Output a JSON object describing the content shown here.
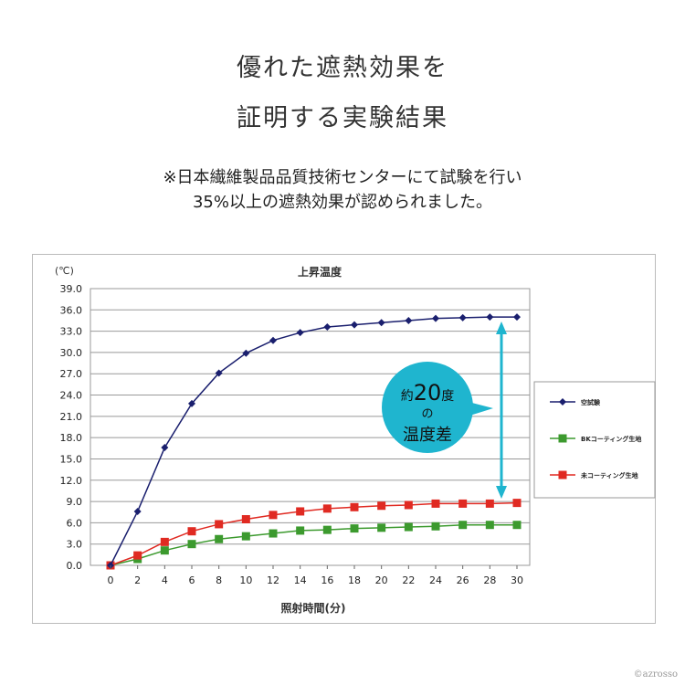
{
  "heading": {
    "line1": "優れた遮熱効果を",
    "line2": "証明する実験結果"
  },
  "description": {
    "line1": "※日本繊維製品品質技術センターにて試験を行い",
    "line2": "35%以上の遮熱効果が認められました。"
  },
  "callout": {
    "prefix": "約",
    "number": "20",
    "suffix": "度",
    "middle": "の",
    "bottom": "温度差",
    "color": "#1fb5cf"
  },
  "watermark": "©azrosso",
  "chart_data": {
    "type": "line",
    "title": "上昇温度",
    "ylabel": "(℃)",
    "xlabel": "照射時間(分)",
    "x": [
      0,
      2,
      4,
      6,
      8,
      10,
      12,
      14,
      16,
      18,
      20,
      22,
      24,
      26,
      28,
      30
    ],
    "ylim": [
      0,
      39
    ],
    "yticks": [
      "0.0",
      "3.0",
      "6.0",
      "9.0",
      "12.0",
      "15.0",
      "18.0",
      "21.0",
      "24.0",
      "27.0",
      "30.0",
      "33.0",
      "36.0",
      "39.0"
    ],
    "grid": true,
    "legend": "right",
    "series": [
      {
        "name": "空試験",
        "color": "#1a1f6e",
        "marker": "diamond",
        "values": [
          0,
          7.6,
          16.6,
          22.8,
          27.1,
          29.9,
          31.7,
          32.8,
          33.6,
          33.9,
          34.2,
          34.5,
          34.8,
          34.9,
          35.0,
          35.0
        ]
      },
      {
        "name": "BKコーティング生地",
        "color": "#3c9a2e",
        "marker": "square",
        "values": [
          0,
          0.9,
          2.1,
          3.0,
          3.7,
          4.1,
          4.5,
          4.9,
          5.0,
          5.2,
          5.3,
          5.4,
          5.5,
          5.7,
          5.7,
          5.7
        ]
      },
      {
        "name": "未コーティング生地",
        "color": "#e02a22",
        "marker": "square",
        "values": [
          0,
          1.4,
          3.3,
          4.8,
          5.8,
          6.5,
          7.1,
          7.6,
          8.0,
          8.2,
          8.4,
          8.5,
          8.7,
          8.7,
          8.7,
          8.8
        ]
      }
    ]
  }
}
